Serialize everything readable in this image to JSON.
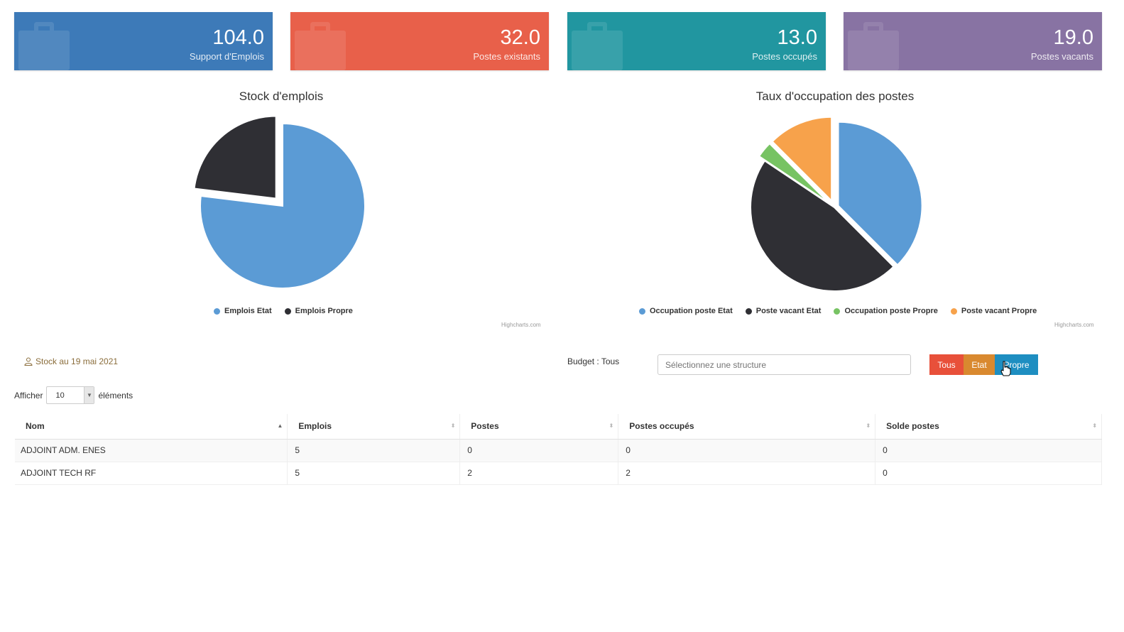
{
  "kpis": [
    {
      "value": "104.0",
      "label": "Support d'Emplois",
      "color": "#3d7ab8"
    },
    {
      "value": "32.0",
      "label": "Postes existants",
      "color": "#e8604a"
    },
    {
      "value": "13.0",
      "label": "Postes occupés",
      "color": "#2196a0"
    },
    {
      "value": "19.0",
      "label": "Postes vacants",
      "color": "#8873a3"
    }
  ],
  "chart_data": [
    {
      "type": "pie",
      "title": "Stock d'emplois",
      "series": [
        {
          "name": "Emplois Etat",
          "value": 80,
          "color": "#5b9bd5"
        },
        {
          "name": "Emplois Propre",
          "value": 24,
          "color": "#2f2f34"
        }
      ],
      "legend": "bottom",
      "credits": "Highcharts.com"
    },
    {
      "type": "pie",
      "title": "Taux d'occupation des postes",
      "series": [
        {
          "name": "Occupation poste Etat",
          "value": 12,
          "color": "#5b9bd5"
        },
        {
          "name": "Poste vacant Etat",
          "value": 15,
          "color": "#2f2f34"
        },
        {
          "name": "Occupation poste Propre",
          "value": 1,
          "color": "#77c363"
        },
        {
          "name": "Poste vacant Propre",
          "value": 4,
          "color": "#f7a24b"
        }
      ],
      "legend": "bottom",
      "credits": "Highcharts.com"
    }
  ],
  "filters": {
    "stock_date": "Stock au 19 mai 2021",
    "budget_label": "Budget : Tous",
    "structure_placeholder": "Sélectionnez une structure",
    "buttons": [
      {
        "label": "Tous",
        "color": "#e8503a"
      },
      {
        "label": "Etat",
        "color": "#d9892f"
      },
      {
        "label": "Propre",
        "color": "#1e8ec1"
      }
    ]
  },
  "table": {
    "length_prefix": "Afficher",
    "length_value": "10",
    "length_suffix": "éléments",
    "columns": [
      "Nom",
      "Emplois",
      "Postes",
      "Postes occupés",
      "Solde postes"
    ],
    "rows": [
      [
        "ADJOINT ADM. ENES",
        "5",
        "0",
        "0",
        "0"
      ],
      [
        "ADJOINT TECH RF",
        "5",
        "2",
        "2",
        "0"
      ]
    ]
  }
}
